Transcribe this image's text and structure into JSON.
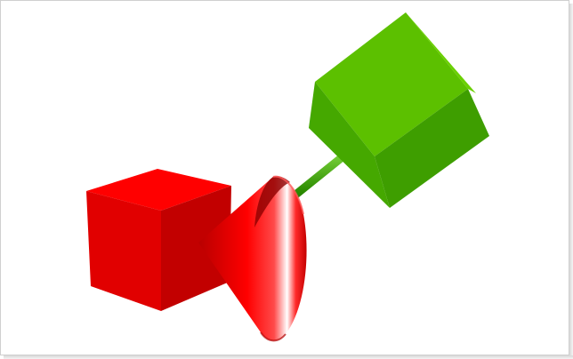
{
  "image": {
    "kind": "3d-render",
    "background_color": "#ffffff",
    "objects": [
      {
        "name": "red-cube",
        "color": "#e00000"
      },
      {
        "name": "red-cone",
        "color": "#ff0000"
      },
      {
        "name": "green-rod",
        "color": "#2e8b00"
      },
      {
        "name": "green-cube",
        "color": "#4fbf00"
      }
    ]
  }
}
